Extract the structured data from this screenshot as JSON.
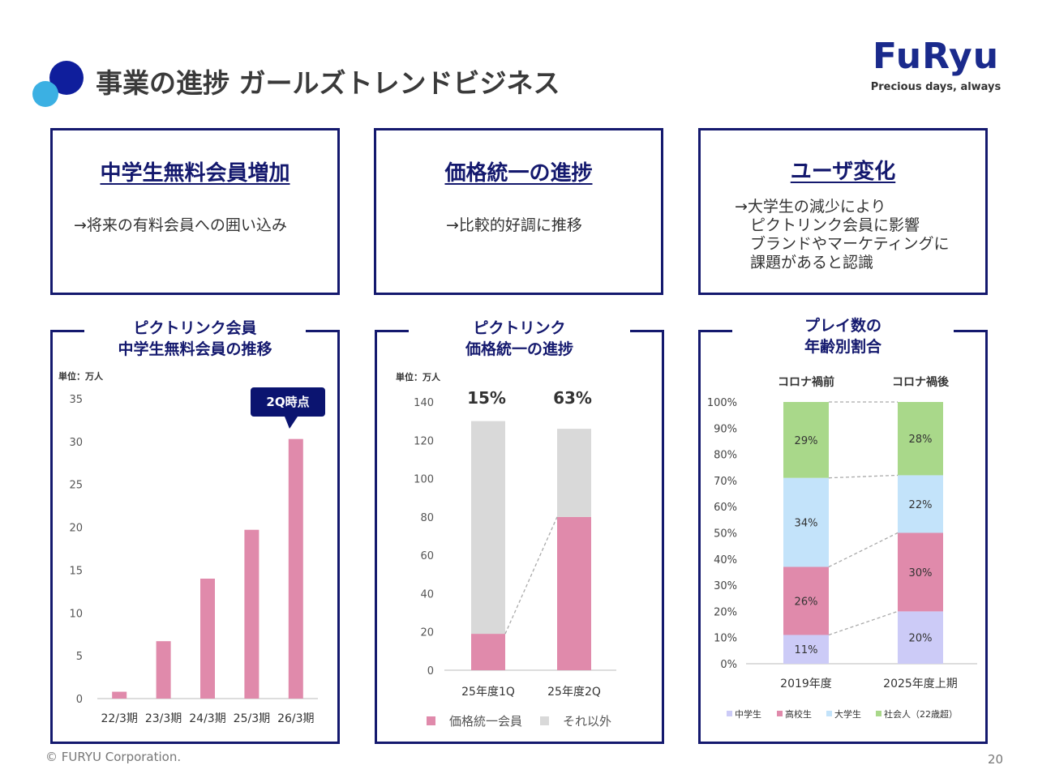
{
  "header": {
    "title": "事業の進捗 ガールズトレンドビジネス",
    "logo_word": "FuRyu",
    "logo_tagline": "Precious days, always"
  },
  "cards": [
    {
      "title": "中学生無料会員増加",
      "lines": [
        "→将来の有料会員への囲い込み"
      ]
    },
    {
      "title": "価格統一の進捗",
      "lines": [
        "→比較的好調に推移"
      ]
    },
    {
      "title": "ユーザ変化",
      "lines": [
        "→大学生の減少により",
        "　ピクトリンク会員に影響",
        "　ブランドやマーケティングに",
        "　課題があると認識"
      ]
    }
  ],
  "chart_heads": [
    [
      "ピクトリンク会員",
      "中学生無料会員の推移"
    ],
    [
      "ピクトリンク",
      "価格統一の進捗"
    ],
    [
      "プレイ数の",
      "年齢別割合"
    ]
  ],
  "footer": {
    "copyright": "© FURYU Corporation.",
    "page": "20"
  },
  "colors": {
    "navy": "#14196e",
    "pink": "#e08aab",
    "gray": "#d9d9d9",
    "lavender": "#cccbf7",
    "sky": "#c3e3fa",
    "green": "#a9d88a"
  },
  "chart_data": [
    {
      "type": "bar",
      "title": "ピクトリンク会員 中学生無料会員の推移",
      "unit": "単位：万人",
      "categories": [
        "22/3期",
        "23/3期",
        "24/3期",
        "25/3期",
        "26/3期"
      ],
      "values": [
        0.8,
        6.7,
        14.0,
        19.7,
        30.3
      ],
      "ylim": [
        0,
        35
      ],
      "yticks": [
        0,
        5,
        10,
        15,
        20,
        25,
        30,
        35
      ],
      "callout": "2Q時点"
    },
    {
      "type": "bar",
      "stacked": true,
      "title": "ピクトリンク 価格統一の進捗",
      "unit": "単位：万人",
      "categories": [
        "25年度1Q",
        "25年度2Q"
      ],
      "series": [
        {
          "name": "価格統一会員",
          "values": [
            19,
            80
          ]
        },
        {
          "name": "それ以外",
          "values": [
            111,
            46
          ]
        }
      ],
      "top_labels": [
        "15%",
        "63%"
      ],
      "ylim": [
        0,
        140
      ],
      "yticks": [
        0,
        20,
        40,
        60,
        80,
        100,
        120,
        140
      ]
    },
    {
      "type": "bar",
      "stacked": true,
      "title": "プレイ数の 年齢別割合",
      "categories": [
        "2019年度",
        "2025年度上期"
      ],
      "group_labels": [
        "コロナ禍前",
        "コロナ禍後"
      ],
      "series": [
        {
          "name": "中学生",
          "values": [
            11,
            20
          ],
          "labels": [
            "11%",
            "20%"
          ]
        },
        {
          "name": "高校生",
          "values": [
            26,
            30
          ],
          "labels": [
            "26%",
            "30%"
          ]
        },
        {
          "name": "大学生",
          "values": [
            34,
            22
          ],
          "labels": [
            "34%",
            "22%"
          ]
        },
        {
          "name": "社会人（22歳超）",
          "values": [
            29,
            28
          ],
          "labels": [
            "29%",
            "28%"
          ]
        }
      ],
      "ylim": [
        0,
        100
      ],
      "yticks": [
        "0%",
        "10%",
        "20%",
        "30%",
        "40%",
        "50%",
        "60%",
        "70%",
        "80%",
        "90%",
        "100%"
      ]
    }
  ]
}
